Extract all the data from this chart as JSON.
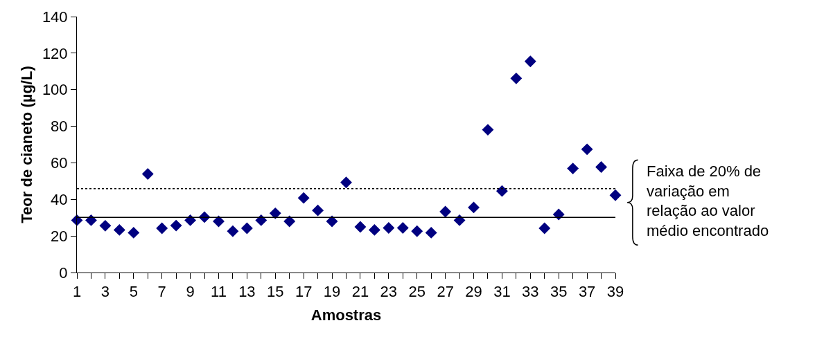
{
  "chart_data": {
    "type": "scatter",
    "xlabel": "Amostras",
    "ylabel": "Teor de cianeto (µg/L)",
    "x": [
      1,
      2,
      3,
      4,
      5,
      6,
      7,
      8,
      9,
      10,
      11,
      12,
      13,
      14,
      15,
      16,
      17,
      18,
      19,
      20,
      21,
      22,
      23,
      24,
      25,
      26,
      27,
      28,
      29,
      30,
      31,
      32,
      33,
      34,
      35,
      36,
      37,
      38,
      39
    ],
    "series": [
      {
        "color": "#000080",
        "values": [
          28.6,
          28.6,
          25.6,
          23.3,
          21.8,
          53.9,
          24.2,
          25.7,
          28.6,
          30.3,
          28.0,
          22.6,
          24.2,
          28.6,
          32.4,
          28.0,
          40.8,
          34.0,
          28.0,
          49.3,
          25.0,
          23.3,
          24.4,
          24.4,
          22.6,
          21.8,
          33.3,
          28.6,
          35.6,
          78.1,
          44.6,
          106.2,
          115.5,
          24.2,
          31.8,
          56.9,
          67.4,
          57.7,
          42.3
        ]
      }
    ],
    "xlim": [
      1,
      39
    ],
    "xticks": [
      1,
      {
        "value": 2,
        "label": null
      },
      3,
      {
        "value": 4,
        "label": null
      },
      5,
      {
        "value": 6,
        "label": null
      },
      7,
      {
        "value": 8,
        "label": null
      },
      9,
      {
        "value": 10,
        "label": null
      },
      11,
      {
        "value": 12,
        "label": null
      },
      13,
      {
        "value": 14,
        "label": null
      },
      15,
      {
        "value": 16,
        "label": null
      },
      17,
      {
        "value": 18,
        "label": null
      },
      19,
      {
        "value": 20,
        "label": null
      },
      21,
      {
        "value": 22,
        "label": null
      },
      23,
      {
        "value": 24,
        "label": null
      },
      25,
      {
        "value": 26,
        "label": null
      },
      27,
      {
        "value": 28,
        "label": null
      },
      29,
      {
        "value": 30,
        "label": null
      },
      31,
      {
        "value": 32,
        "label": null
      },
      33,
      {
        "value": 34,
        "label": null
      },
      35,
      {
        "value": 36,
        "label": null
      },
      37,
      {
        "value": 38,
        "label": null
      },
      39
    ],
    "ylim": [
      0,
      140
    ],
    "yticks": [
      0,
      20,
      40,
      60,
      80,
      100,
      120,
      140
    ],
    "ref_lines": [
      {
        "axis": "y",
        "value": 30.2,
        "color": "#000000",
        "line_style": "solid"
      },
      {
        "axis": "y",
        "value": 45.9,
        "color": "#000000",
        "line_style": "dotted"
      }
    ],
    "annotations": [
      "Faixa de 20% de variação em relação ao valor médio encontrado"
    ],
    "marker": "diamond"
  }
}
